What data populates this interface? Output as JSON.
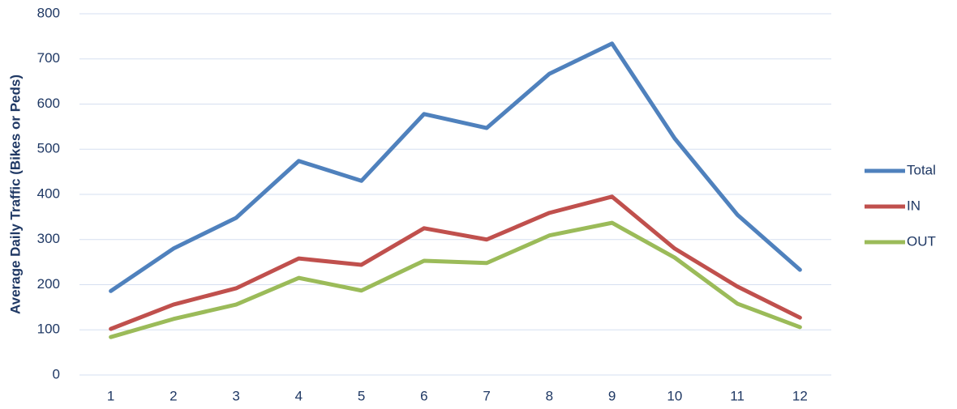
{
  "chart_data": {
    "type": "line",
    "y_label": "Average Daily Traffic (Bikes or Peds)",
    "categories": [
      "1",
      "2",
      "3",
      "4",
      "5",
      "6",
      "7",
      "8",
      "9",
      "10",
      "11",
      "12"
    ],
    "series": [
      {
        "name": "Total",
        "color": "#4f81bd",
        "values": [
          186,
          280,
          348,
          474,
          430,
          578,
          547,
          667,
          734,
          524,
          355,
          233
        ]
      },
      {
        "name": "IN",
        "color": "#c0504d",
        "values": [
          102,
          156,
          192,
          258,
          244,
          325,
          300,
          359,
          395,
          280,
          196,
          127
        ]
      },
      {
        "name": "OUT",
        "color": "#9bbb59",
        "values": [
          84,
          124,
          156,
          215,
          187,
          253,
          248,
          309,
          337,
          260,
          158,
          106
        ]
      }
    ],
    "ylim": [
      0,
      800
    ],
    "yticks": [
      0,
      100,
      200,
      300,
      400,
      500,
      600,
      700,
      800
    ],
    "grid": true,
    "legend": "right"
  }
}
